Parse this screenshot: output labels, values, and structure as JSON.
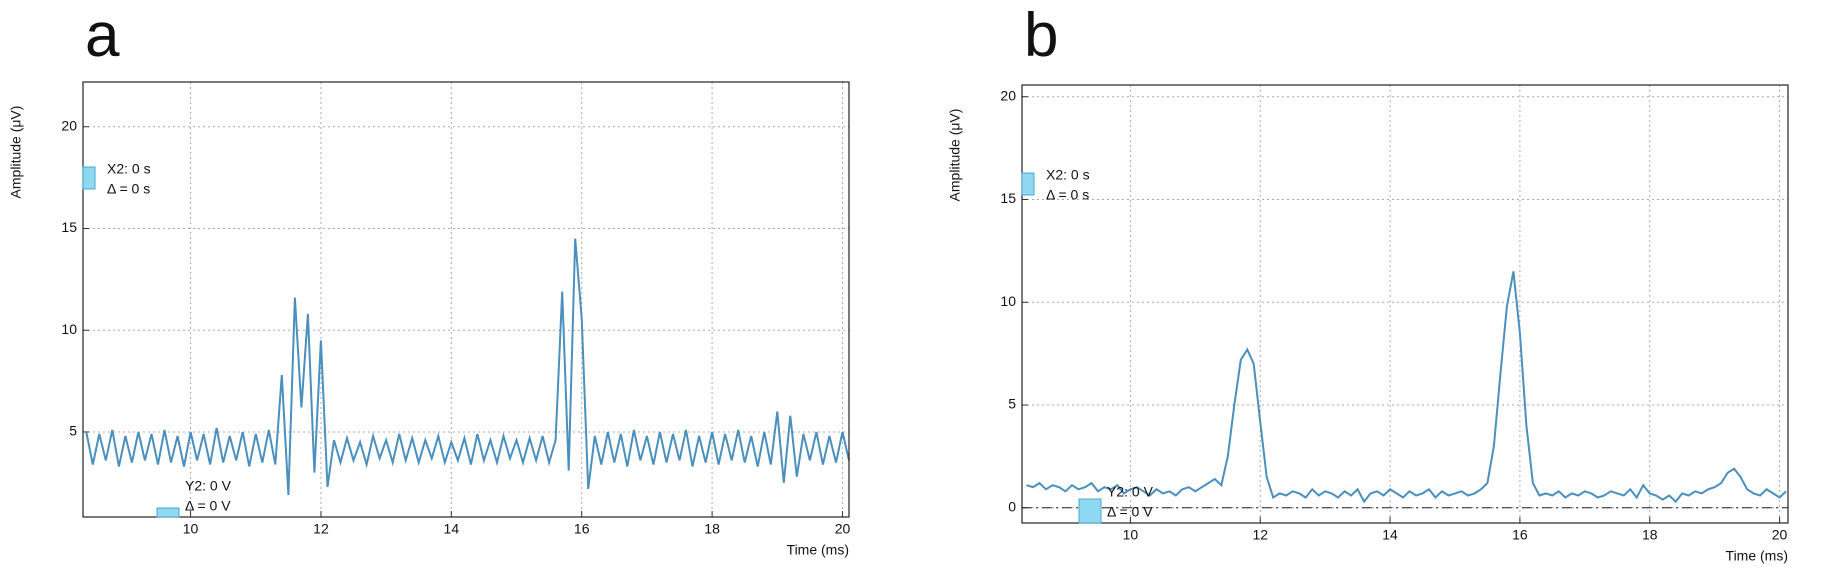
{
  "chart_data": [
    {
      "type": "line",
      "panel_label": "a",
      "y_label": "Amplitude (μV)",
      "x_label": "Time (ms)",
      "color": "#4a8fbe",
      "grid": true,
      "xlim": [
        8.35,
        20.1
      ],
      "ylim": [
        0.82,
        22.2
      ],
      "xticks": [
        10,
        12,
        14,
        16,
        18,
        20
      ],
      "yticks": [
        5,
        10,
        15,
        20
      ],
      "annotations": [
        "X2: 0 s",
        "Δ = 0 s",
        "Y2: 0 V",
        "Δ = 0 V"
      ],
      "x": [
        8.4,
        8.5,
        8.6,
        8.7,
        8.8,
        8.9,
        9.0,
        9.1,
        9.2,
        9.3,
        9.4,
        9.5,
        9.6,
        9.7,
        9.8,
        9.9,
        10.0,
        10.1,
        10.2,
        10.3,
        10.4,
        10.5,
        10.6,
        10.7,
        10.8,
        10.9,
        11.0,
        11.1,
        11.2,
        11.3,
        11.4,
        11.5,
        11.6,
        11.7,
        11.8,
        11.9,
        12.0,
        12.1,
        12.2,
        12.3,
        12.4,
        12.5,
        12.6,
        12.7,
        12.8,
        12.9,
        13.0,
        13.1,
        13.2,
        13.3,
        13.4,
        13.5,
        13.6,
        13.7,
        13.8,
        13.9,
        14.0,
        14.1,
        14.2,
        14.3,
        14.4,
        14.5,
        14.6,
        14.7,
        14.8,
        14.9,
        15.0,
        15.1,
        15.2,
        15.3,
        15.4,
        15.5,
        15.6,
        15.7,
        15.8,
        15.9,
        16.0,
        16.1,
        16.2,
        16.3,
        16.4,
        16.5,
        16.6,
        16.7,
        16.8,
        16.9,
        17.0,
        17.1,
        17.2,
        17.3,
        17.4,
        17.5,
        17.6,
        17.7,
        17.8,
        17.9,
        18.0,
        18.1,
        18.2,
        18.3,
        18.4,
        18.5,
        18.6,
        18.7,
        18.8,
        18.9,
        19.0,
        19.1,
        19.2,
        19.3,
        19.4,
        19.5,
        19.6,
        19.7,
        19.8,
        19.9,
        20.0,
        20.1
      ],
      "values": [
        5.0,
        3.4,
        4.9,
        3.6,
        5.1,
        3.3,
        4.8,
        3.5,
        5.0,
        3.6,
        4.9,
        3.4,
        5.1,
        3.5,
        4.8,
        3.3,
        5.0,
        3.6,
        4.9,
        3.4,
        5.2,
        3.5,
        4.8,
        3.6,
        5.0,
        3.3,
        4.9,
        3.5,
        5.1,
        3.4,
        7.8,
        1.9,
        11.6,
        6.2,
        10.8,
        3.0,
        9.5,
        2.3,
        4.6,
        3.5,
        4.7,
        3.6,
        4.5,
        3.4,
        4.8,
        3.7,
        4.6,
        3.5,
        4.9,
        3.6,
        4.7,
        3.5,
        4.6,
        3.7,
        4.8,
        3.5,
        4.5,
        3.6,
        4.7,
        3.4,
        4.9,
        3.6,
        4.6,
        3.5,
        4.8,
        3.7,
        4.6,
        3.5,
        4.7,
        3.6,
        4.8,
        3.5,
        4.6,
        11.9,
        3.1,
        14.5,
        10.6,
        2.2,
        4.8,
        3.4,
        5.0,
        3.5,
        4.9,
        3.3,
        5.1,
        3.6,
        4.8,
        3.4,
        5.0,
        3.5,
        4.9,
        3.6,
        5.1,
        3.3,
        4.8,
        3.5,
        5.0,
        3.4,
        4.9,
        3.6,
        5.1,
        3.5,
        4.8,
        3.3,
        5.0,
        3.4,
        6.0,
        2.5,
        5.8,
        2.8,
        4.9,
        3.6,
        5.0,
        3.4,
        4.8,
        3.5,
        5.0,
        3.6
      ]
    },
    {
      "type": "line",
      "panel_label": "b",
      "y_label": "Amplitude (μV)",
      "x_label": "Time (ms)",
      "color": "#4a8fbe",
      "grid": true,
      "reference_line": 0,
      "xlim": [
        8.33,
        20.13
      ],
      "ylim": [
        -0.74,
        20.57
      ],
      "xticks": [
        10,
        12,
        14,
        16,
        18,
        20
      ],
      "yticks": [
        0,
        5,
        10,
        15,
        20
      ],
      "annotations": [
        "X2: 0 s",
        "Δ = 0 s",
        "Y2: 0 V",
        "Δ = 0 V"
      ],
      "x": [
        8.4,
        8.5,
        8.6,
        8.7,
        8.8,
        8.9,
        9.0,
        9.1,
        9.2,
        9.3,
        9.4,
        9.5,
        9.6,
        9.7,
        9.8,
        9.9,
        10.0,
        10.1,
        10.2,
        10.3,
        10.4,
        10.5,
        10.6,
        10.7,
        10.8,
        10.9,
        11.0,
        11.1,
        11.2,
        11.3,
        11.4,
        11.5,
        11.6,
        11.7,
        11.8,
        11.9,
        12.0,
        12.1,
        12.2,
        12.3,
        12.4,
        12.5,
        12.6,
        12.7,
        12.8,
        12.9,
        13.0,
        13.1,
        13.2,
        13.3,
        13.4,
        13.5,
        13.6,
        13.7,
        13.8,
        13.9,
        14.0,
        14.1,
        14.2,
        14.3,
        14.4,
        14.5,
        14.6,
        14.7,
        14.8,
        14.9,
        15.0,
        15.1,
        15.2,
        15.3,
        15.4,
        15.5,
        15.6,
        15.7,
        15.8,
        15.9,
        16.0,
        16.1,
        16.2,
        16.3,
        16.4,
        16.5,
        16.6,
        16.7,
        16.8,
        16.9,
        17.0,
        17.1,
        17.2,
        17.3,
        17.4,
        17.5,
        17.6,
        17.7,
        17.8,
        17.9,
        18.0,
        18.1,
        18.2,
        18.3,
        18.4,
        18.5,
        18.6,
        18.7,
        18.8,
        18.9,
        19.0,
        19.1,
        19.2,
        19.3,
        19.4,
        19.5,
        19.6,
        19.7,
        19.8,
        19.9,
        20.0,
        20.1
      ],
      "values": [
        1.1,
        1.0,
        1.2,
        0.9,
        1.1,
        1.0,
        0.8,
        1.1,
        0.9,
        1.0,
        1.2,
        0.8,
        1.0,
        0.9,
        1.1,
        0.7,
        0.9,
        1.0,
        0.8,
        0.6,
        0.9,
        0.7,
        0.8,
        0.6,
        0.9,
        1.0,
        0.8,
        1.0,
        1.2,
        1.4,
        1.1,
        2.5,
        5.0,
        7.2,
        7.7,
        7.0,
        4.2,
        1.5,
        0.5,
        0.7,
        0.6,
        0.8,
        0.7,
        0.5,
        0.9,
        0.6,
        0.8,
        0.7,
        0.5,
        0.8,
        0.6,
        0.9,
        0.3,
        0.7,
        0.8,
        0.6,
        0.9,
        0.7,
        0.5,
        0.8,
        0.6,
        0.7,
        0.9,
        0.5,
        0.8,
        0.6,
        0.7,
        0.8,
        0.6,
        0.7,
        0.9,
        1.2,
        3.0,
        6.5,
        9.8,
        11.5,
        8.5,
        4.0,
        1.2,
        0.6,
        0.7,
        0.6,
        0.8,
        0.5,
        0.7,
        0.6,
        0.8,
        0.7,
        0.5,
        0.6,
        0.8,
        0.7,
        0.6,
        0.9,
        0.5,
        1.1,
        0.7,
        0.6,
        0.4,
        0.6,
        0.3,
        0.7,
        0.6,
        0.8,
        0.7,
        0.9,
        1.0,
        1.2,
        1.7,
        1.9,
        1.5,
        0.9,
        0.7,
        0.6,
        0.9,
        0.7,
        0.5,
        0.8
      ]
    }
  ]
}
